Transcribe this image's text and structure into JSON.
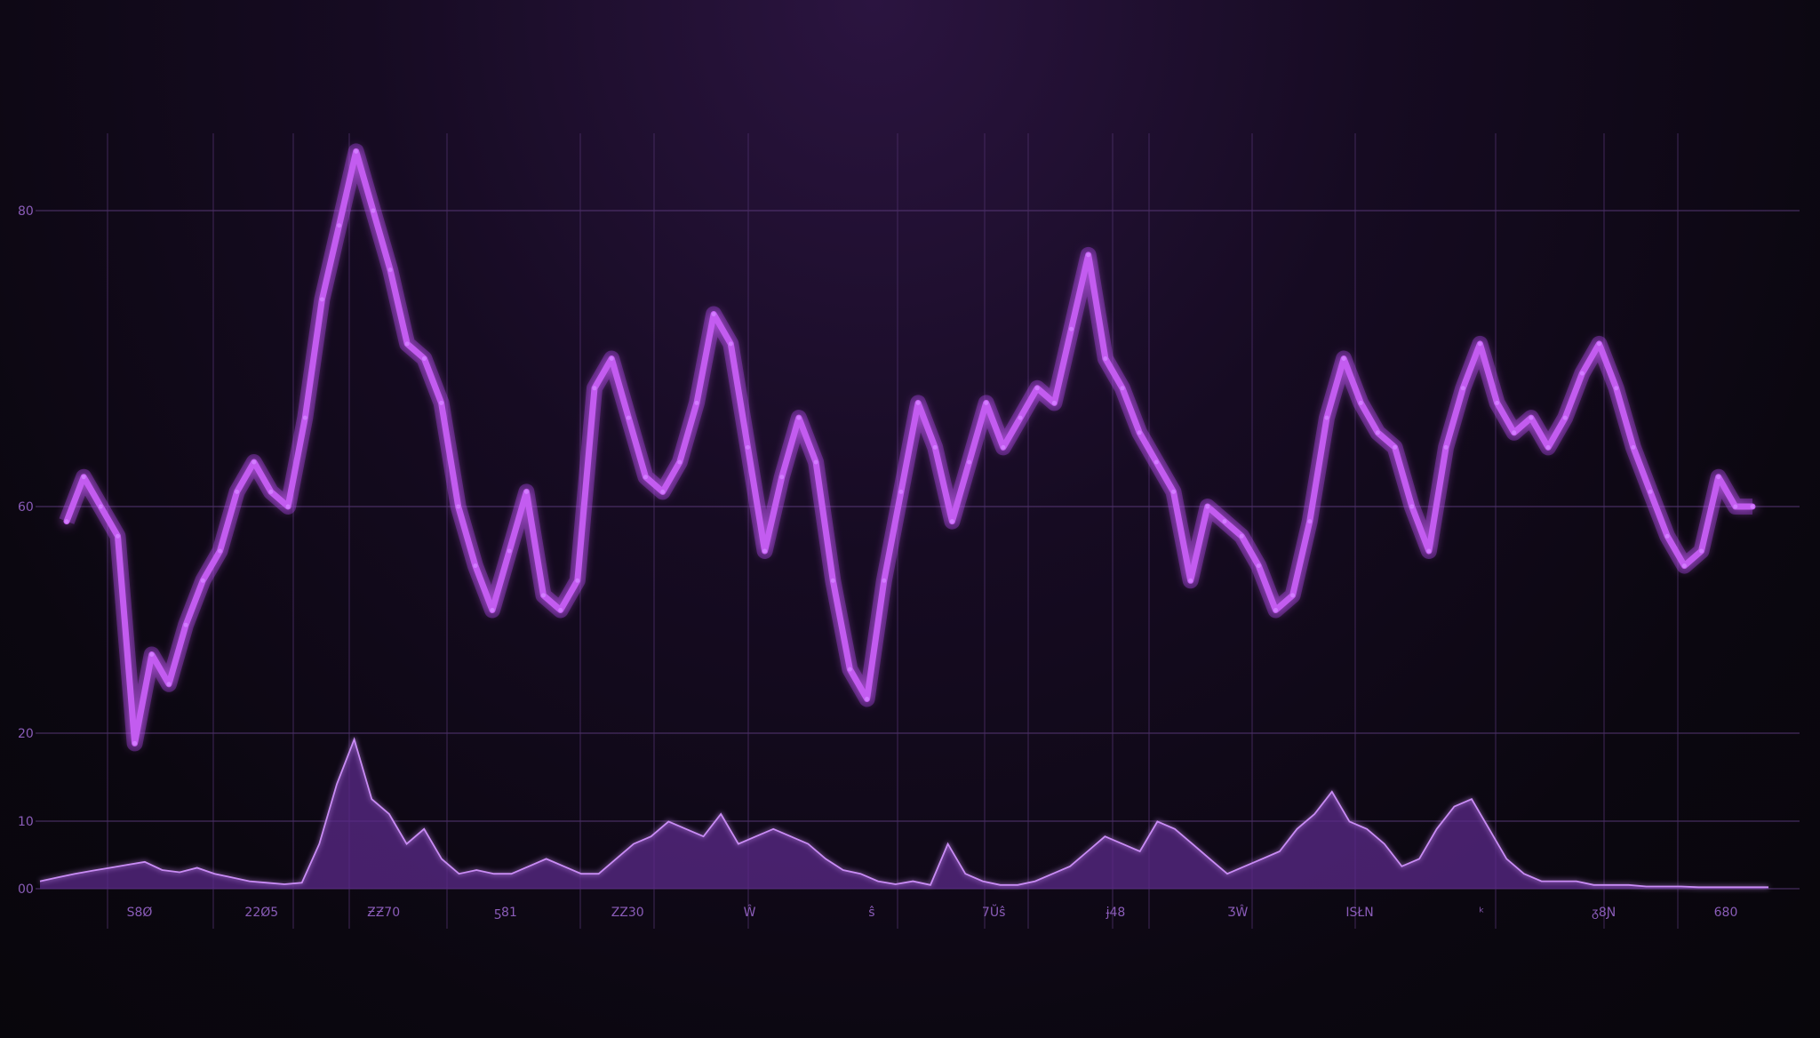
{
  "chart_data": [
    {
      "type": "line",
      "title": "",
      "xlabel": "",
      "ylabel": "",
      "grid": true,
      "color": "#c35cf0",
      "y_ticks": [
        "80",
        "60"
      ],
      "ylim": [
        0,
        100
      ],
      "x": [
        0,
        1,
        2,
        3,
        4,
        5,
        6,
        7,
        8,
        9,
        10,
        11,
        12,
        13,
        14,
        15,
        16,
        17,
        18,
        19,
        20,
        21,
        22,
        23,
        24,
        25,
        26,
        27,
        28,
        29,
        30,
        31,
        32,
        33,
        34,
        35,
        36,
        37,
        38,
        39,
        40,
        41,
        42,
        43,
        44,
        45,
        46,
        47,
        48,
        49,
        50,
        51,
        52,
        53,
        54,
        55,
        56,
        57,
        58,
        59,
        60,
        61,
        62,
        63,
        64,
        65,
        66,
        67,
        68,
        69,
        70,
        71,
        72,
        73,
        74,
        75,
        76,
        77,
        78,
        79,
        80,
        81,
        82,
        83,
        84,
        85,
        86,
        87,
        88,
        89,
        90,
        91,
        92,
        93,
        94,
        95,
        96,
        97,
        98,
        99
      ],
      "values": [
        59,
        62,
        60,
        58,
        44,
        50,
        48,
        52,
        55,
        57,
        61,
        63,
        61,
        60,
        66,
        74,
        79,
        84,
        80,
        76,
        71,
        70,
        67,
        60,
        56,
        53,
        57,
        61,
        54,
        53,
        55,
        68,
        70,
        66,
        62,
        61,
        63,
        67,
        73,
        71,
        64,
        57,
        62,
        66,
        63,
        55,
        49,
        47,
        55,
        61,
        67,
        64,
        59,
        63,
        67,
        64,
        66,
        68,
        67,
        72,
        77,
        70,
        68,
        65,
        63,
        61,
        55,
        60,
        59,
        58,
        56,
        53,
        54,
        59,
        66,
        70,
        67,
        65,
        64,
        60,
        57,
        64,
        68,
        71,
        67,
        65,
        66,
        64,
        66,
        69,
        71,
        68,
        64,
        61,
        58,
        56,
        57,
        62,
        60,
        60
      ]
    },
    {
      "type": "area",
      "title": "",
      "xlabel": "",
      "ylabel": "",
      "grid": true,
      "color": "#5b2a8a",
      "y_ticks": [
        "20",
        "10",
        "00"
      ],
      "ylim": [
        0,
        25
      ],
      "x_ticks": [
        "S8Ø",
        "22Ø5",
        "ƵƵ70",
        "ƽ81",
        "ZZ30",
        "Ŵ",
        "ŝ",
        "7Ŭŝ",
        "ɉ48",
        "ƷŴ",
        "ISŁN",
        "ᵏ",
        "ᵹ8Ɲ",
        "680"
      ],
      "x": [
        0,
        1,
        2,
        3,
        4,
        5,
        6,
        7,
        8,
        9,
        10,
        11,
        12,
        13,
        14,
        15,
        16,
        17,
        18,
        19,
        20,
        21,
        22,
        23,
        24,
        25,
        26,
        27,
        28,
        29,
        30,
        31,
        32,
        33,
        34,
        35,
        36,
        37,
        38,
        39,
        40,
        41,
        42,
        43,
        44,
        45,
        46,
        47,
        48,
        49,
        50,
        51,
        52,
        53,
        54,
        55,
        56,
        57,
        58,
        59,
        60,
        61,
        62,
        63,
        64,
        65,
        66,
        67,
        68,
        69,
        70,
        71,
        72,
        73,
        74,
        75,
        76,
        77,
        78,
        79,
        80,
        81,
        82,
        83,
        84,
        85,
        86,
        87,
        88,
        89,
        90,
        91,
        92,
        93,
        94,
        95,
        96,
        97,
        98,
        99
      ],
      "values": [
        1,
        1.5,
        2,
        2.4,
        2.8,
        3.2,
        3.6,
        2.5,
        2.2,
        2.8,
        2.0,
        1.5,
        1.0,
        0.8,
        0.6,
        0.8,
        6,
        14,
        20,
        12,
        10,
        6,
        8,
        4,
        2,
        2.5,
        2,
        2,
        3,
        4,
        3,
        2,
        2,
        4,
        6,
        7,
        9,
        8,
        7,
        10,
        6,
        7,
        8,
        7,
        6,
        4,
        2.5,
        2,
        1,
        0.6,
        1,
        0.5,
        6,
        2,
        1,
        0.5,
        0.5,
        1,
        2,
        3,
        5,
        7,
        6,
        5,
        9,
        8,
        6,
        4,
        2,
        3,
        4,
        5,
        8,
        10,
        13,
        9,
        8,
        6,
        3,
        4,
        8,
        11,
        12,
        8,
        4,
        2,
        1,
        1,
        1,
        0.5,
        0.5,
        0.5,
        0.3,
        0.3,
        0.3,
        0.2,
        0.2,
        0.2,
        0.2,
        0.2
      ]
    }
  ]
}
